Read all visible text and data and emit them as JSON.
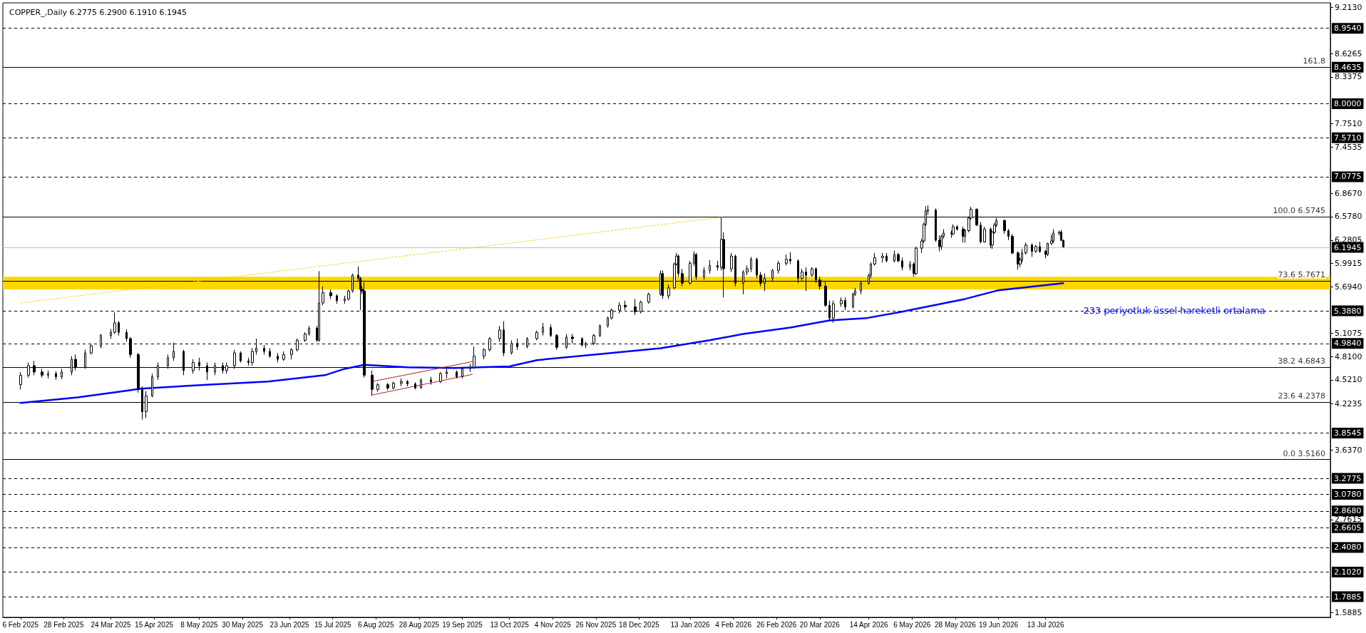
{
  "chart_data": {
    "type": "candlestick",
    "title": "COPPER_,Daily 6.2775 6.2900 6.1910 6.1945",
    "color": "#000000",
    "marker": "none",
    "x": [
      "2025-02-06",
      "2025-02-10",
      "2025-02-13",
      "2025-02-17",
      "2025-02-20",
      "2025-02-24",
      "2025-02-27",
      "2025-03-04",
      "2025-03-06",
      "2025-03-11",
      "2025-03-14",
      "2025-03-19",
      "2025-03-24",
      "2025-03-26",
      "2025-03-28",
      "2025-04-01",
      "2025-04-03",
      "2025-04-07",
      "2025-04-09",
      "2025-04-11",
      "2025-04-14",
      "2025-04-17",
      "2025-04-22",
      "2025-04-25",
      "2025-04-30",
      "2025-05-05",
      "2025-05-08",
      "2025-05-12",
      "2025-05-16",
      "2025-05-20",
      "2025-05-22",
      "2025-05-26",
      "2025-05-29",
      "2025-06-02",
      "2025-06-04",
      "2025-06-06",
      "2025-06-10",
      "2025-06-13",
      "2025-06-17",
      "2025-06-20",
      "2025-06-24",
      "2025-06-27",
      "2025-07-01",
      "2025-07-03",
      "2025-07-07",
      "2025-07-08",
      "2025-07-10",
      "2025-07-14",
      "2025-07-17",
      "2025-07-21",
      "2025-07-23",
      "2025-07-25",
      "2025-07-28",
      "2025-07-29",
      "2025-07-30",
      "2025-07-31",
      "2025-08-04",
      "2025-08-07",
      "2025-08-12",
      "2025-08-15",
      "2025-08-19",
      "2025-08-22",
      "2025-08-26",
      "2025-08-29",
      "2025-09-03",
      "2025-09-08",
      "2025-09-11",
      "2025-09-16",
      "2025-09-19",
      "2025-09-23",
      "2025-09-25",
      "2025-09-30",
      "2025-10-03",
      "2025-10-08",
      "2025-10-10",
      "2025-10-14",
      "2025-10-17",
      "2025-10-22",
      "2025-10-27",
      "2025-10-30",
      "2025-11-03",
      "2025-11-06",
      "2025-11-11",
      "2025-11-14",
      "2025-11-19",
      "2025-11-21",
      "2025-11-25",
      "2025-11-28",
      "2025-12-02",
      "2025-12-04",
      "2025-12-08",
      "2025-12-11",
      "2025-12-16",
      "2025-12-19",
      "2025-12-23",
      "2025-12-29",
      "2025-12-30",
      "2026-01-02",
      "2026-01-05",
      "2026-01-06",
      "2026-01-07",
      "2026-01-09",
      "2026-01-13",
      "2026-01-15",
      "2026-01-16",
      "2026-01-20",
      "2026-01-23",
      "2026-01-27",
      "2026-01-29",
      "2026-01-30",
      "2026-02-03",
      "2026-02-05",
      "2026-02-09",
      "2026-02-11",
      "2026-02-13",
      "2026-02-16",
      "2026-02-18",
      "2026-02-20",
      "2026-02-24",
      "2026-02-27",
      "2026-03-03",
      "2026-03-05",
      "2026-03-09",
      "2026-03-11",
      "2026-03-13",
      "2026-03-16",
      "2026-03-18",
      "2026-03-20",
      "2026-03-23",
      "2026-03-25",
      "2026-03-27",
      "2026-03-31",
      "2026-04-02",
      "2026-04-06",
      "2026-04-07",
      "2026-04-10",
      "2026-04-14",
      "2026-04-15",
      "2026-04-17",
      "2026-04-21",
      "2026-04-23",
      "2026-04-27",
      "2026-04-29",
      "2026-05-01",
      "2026-05-05",
      "2026-05-07",
      "2026-05-08",
      "2026-05-11",
      "2026-05-12",
      "2026-05-13",
      "2026-05-14",
      "2026-05-18",
      "2026-05-20",
      "2026-05-21",
      "2026-05-22",
      "2026-05-26",
      "2026-05-27",
      "2026-05-29",
      "2026-06-01",
      "2026-06-02",
      "2026-06-04",
      "2026-06-05",
      "2026-06-08",
      "2026-06-10",
      "2026-06-12",
      "2026-06-15",
      "2026-06-16",
      "2026-06-17",
      "2026-06-18",
      "2026-06-22",
      "2026-06-24",
      "2026-06-26",
      "2026-06-29",
      "2026-06-30",
      "2026-07-01",
      "2026-07-03",
      "2026-07-06",
      "2026-07-08",
      "2026-07-10",
      "2026-07-13",
      "2026-07-14",
      "2026-07-16",
      "2026-07-17",
      "2026-07-20",
      "2026-07-21",
      "2026-07-22"
    ],
    "ohlc": [
      [
        4.46,
        4.62,
        4.4,
        4.58
      ],
      [
        4.58,
        4.74,
        4.55,
        4.7
      ],
      [
        4.7,
        4.76,
        4.58,
        4.62
      ],
      [
        4.62,
        4.66,
        4.55,
        4.58
      ],
      [
        4.58,
        4.64,
        4.54,
        4.6
      ],
      [
        4.6,
        4.63,
        4.52,
        4.56
      ],
      [
        4.56,
        4.66,
        4.53,
        4.62
      ],
      [
        4.62,
        4.82,
        4.58,
        4.78
      ],
      [
        4.78,
        4.84,
        4.64,
        4.68
      ],
      [
        4.68,
        4.9,
        4.66,
        4.86
      ],
      [
        4.86,
        4.97,
        4.84,
        4.95
      ],
      [
        4.95,
        5.1,
        4.92,
        5.08
      ],
      [
        5.08,
        5.16,
        5.04,
        5.12
      ],
      [
        5.12,
        5.37,
        5.1,
        5.24
      ],
      [
        5.24,
        5.26,
        5.08,
        5.12
      ],
      [
        5.12,
        5.16,
        5.0,
        5.04
      ],
      [
        5.04,
        5.06,
        4.8,
        4.84
      ],
      [
        4.84,
        4.86,
        4.36,
        4.4
      ],
      [
        4.4,
        4.44,
        4.02,
        4.12
      ],
      [
        4.12,
        4.38,
        4.04,
        4.32
      ],
      [
        4.32,
        4.6,
        4.3,
        4.56
      ],
      [
        4.56,
        4.74,
        4.52,
        4.7
      ],
      [
        4.7,
        4.84,
        4.66,
        4.8
      ],
      [
        4.8,
        4.99,
        4.76,
        4.88
      ],
      [
        4.88,
        4.9,
        4.58,
        4.64
      ],
      [
        4.64,
        4.78,
        4.6,
        4.74
      ],
      [
        4.74,
        4.8,
        4.64,
        4.7
      ],
      [
        4.7,
        4.74,
        4.52,
        4.62
      ],
      [
        4.62,
        4.74,
        4.58,
        4.7
      ],
      [
        4.7,
        4.74,
        4.6,
        4.64
      ],
      [
        4.64,
        4.74,
        4.6,
        4.7
      ],
      [
        4.7,
        4.9,
        4.66,
        4.86
      ],
      [
        4.86,
        4.88,
        4.74,
        4.76
      ],
      [
        4.76,
        4.8,
        4.7,
        4.74
      ],
      [
        4.74,
        4.92,
        4.7,
        4.88
      ],
      [
        4.88,
        5.04,
        4.84,
        4.92
      ],
      [
        4.92,
        4.96,
        4.84,
        4.88
      ],
      [
        4.88,
        4.92,
        4.8,
        4.82
      ],
      [
        4.82,
        4.86,
        4.74,
        4.78
      ],
      [
        4.78,
        4.88,
        4.76,
        4.84
      ],
      [
        4.84,
        4.92,
        4.78,
        4.9
      ],
      [
        4.9,
        5.04,
        4.88,
        5.02
      ],
      [
        5.02,
        5.12,
        5.0,
        5.1
      ],
      [
        5.1,
        5.2,
        5.08,
        5.17
      ],
      [
        5.17,
        5.2,
        5.0,
        5.02
      ],
      [
        5.02,
        5.89,
        5.0,
        5.49
      ],
      [
        5.49,
        5.7,
        5.46,
        5.62
      ],
      [
        5.62,
        5.66,
        5.54,
        5.58
      ],
      [
        5.58,
        5.6,
        5.48,
        5.52
      ],
      [
        5.52,
        5.58,
        5.48,
        5.54
      ],
      [
        5.54,
        5.66,
        5.52,
        5.64
      ],
      [
        5.64,
        5.86,
        5.62,
        5.84
      ],
      [
        5.84,
        5.95,
        5.76,
        5.8
      ],
      [
        5.8,
        5.82,
        5.4,
        5.66
      ],
      [
        5.66,
        5.7,
        5.6,
        5.64
      ],
      [
        5.64,
        5.75,
        4.55,
        4.58
      ],
      [
        4.58,
        4.64,
        4.32,
        4.4
      ],
      [
        4.4,
        4.48,
        4.37,
        4.46
      ],
      [
        4.46,
        4.48,
        4.39,
        4.42
      ],
      [
        4.42,
        4.5,
        4.4,
        4.48
      ],
      [
        4.48,
        4.54,
        4.44,
        4.5
      ],
      [
        4.5,
        4.52,
        4.44,
        4.47
      ],
      [
        4.47,
        4.49,
        4.4,
        4.42
      ],
      [
        4.42,
        4.54,
        4.41,
        4.52
      ],
      [
        4.52,
        4.56,
        4.46,
        4.5
      ],
      [
        4.5,
        4.62,
        4.48,
        4.6
      ],
      [
        4.6,
        4.66,
        4.54,
        4.62
      ],
      [
        4.62,
        4.64,
        4.54,
        4.56
      ],
      [
        4.56,
        4.68,
        4.54,
        4.66
      ],
      [
        4.66,
        4.72,
        4.62,
        4.68
      ],
      [
        4.68,
        4.94,
        4.66,
        4.82
      ],
      [
        4.82,
        4.92,
        4.78,
        4.9
      ],
      [
        4.9,
        5.06,
        4.88,
        5.04
      ],
      [
        5.04,
        5.2,
        5.0,
        5.15
      ],
      [
        5.15,
        5.26,
        4.82,
        4.86
      ],
      [
        4.86,
        5.02,
        4.84,
        4.98
      ],
      [
        4.98,
        5.04,
        4.9,
        4.94
      ],
      [
        4.94,
        5.06,
        4.92,
        5.04
      ],
      [
        5.04,
        5.14,
        5.02,
        5.12
      ],
      [
        5.12,
        5.24,
        5.08,
        5.18
      ],
      [
        5.18,
        5.22,
        5.06,
        5.08
      ],
      [
        5.08,
        5.1,
        4.9,
        4.93
      ],
      [
        4.93,
        5.1,
        4.91,
        5.06
      ],
      [
        5.06,
        5.1,
        4.98,
        5.04
      ],
      [
        5.04,
        5.06,
        4.94,
        4.96
      ],
      [
        4.96,
        5.0,
        4.92,
        4.98
      ],
      [
        4.98,
        5.1,
        4.96,
        5.08
      ],
      [
        5.08,
        5.22,
        5.06,
        5.2
      ],
      [
        5.2,
        5.32,
        5.18,
        5.3
      ],
      [
        5.3,
        5.42,
        5.28,
        5.4
      ],
      [
        5.4,
        5.5,
        5.36,
        5.46
      ],
      [
        5.46,
        5.52,
        5.4,
        5.44
      ],
      [
        5.44,
        5.54,
        5.34,
        5.38
      ],
      [
        5.38,
        5.52,
        5.36,
        5.5
      ],
      [
        5.5,
        5.62,
        5.48,
        5.6
      ],
      [
        5.6,
        5.9,
        5.58,
        5.86
      ],
      [
        5.86,
        5.9,
        5.54,
        5.58
      ],
      [
        5.58,
        5.72,
        5.54,
        5.68
      ],
      [
        5.68,
        6.0,
        5.66,
        5.98
      ],
      [
        5.98,
        6.12,
        5.96,
        6.08
      ],
      [
        6.08,
        6.1,
        5.82,
        5.86
      ],
      [
        5.86,
        5.92,
        5.7,
        5.74
      ],
      [
        5.74,
        6.02,
        5.72,
        5.99
      ],
      [
        5.99,
        6.14,
        5.96,
        6.1
      ],
      [
        6.1,
        6.12,
        5.78,
        5.82
      ],
      [
        5.82,
        5.94,
        5.78,
        5.9
      ],
      [
        5.9,
        6.03,
        5.86,
        5.96
      ],
      [
        5.96,
        6.02,
        5.9,
        5.94
      ],
      [
        5.94,
        6.57,
        5.9,
        6.29
      ],
      [
        6.29,
        6.38,
        5.56,
        5.92
      ],
      [
        5.92,
        6.12,
        5.88,
        6.08
      ],
      [
        6.08,
        6.1,
        5.7,
        5.74
      ],
      [
        5.74,
        5.9,
        5.6,
        5.88
      ],
      [
        5.88,
        5.96,
        5.84,
        5.92
      ],
      [
        5.92,
        6.07,
        5.88,
        6.04
      ],
      [
        6.04,
        6.06,
        5.8,
        5.84
      ],
      [
        5.84,
        5.88,
        5.7,
        5.74
      ],
      [
        5.74,
        5.86,
        5.64,
        5.8
      ],
      [
        5.8,
        5.92,
        5.76,
        5.9
      ],
      [
        5.9,
        6.02,
        5.86,
        5.99
      ],
      [
        5.99,
        6.1,
        5.96,
        6.04
      ],
      [
        6.04,
        6.13,
        5.98,
        6.02
      ],
      [
        6.02,
        6.04,
        5.74,
        5.8
      ],
      [
        5.8,
        5.92,
        5.76,
        5.88
      ],
      [
        5.88,
        5.94,
        5.64,
        5.84
      ],
      [
        5.84,
        5.94,
        5.82,
        5.92
      ],
      [
        5.92,
        5.94,
        5.74,
        5.78
      ],
      [
        5.78,
        5.82,
        5.66,
        5.7
      ],
      [
        5.7,
        5.76,
        5.44,
        5.46
      ],
      [
        5.46,
        5.52,
        5.26,
        5.3
      ],
      [
        5.3,
        5.52,
        5.24,
        5.48
      ],
      [
        5.48,
        5.56,
        5.44,
        5.52
      ],
      [
        5.52,
        5.56,
        5.4,
        5.44
      ],
      [
        5.44,
        5.62,
        5.42,
        5.6
      ],
      [
        5.6,
        5.68,
        5.58,
        5.64
      ],
      [
        5.64,
        5.76,
        5.6,
        5.74
      ],
      [
        5.74,
        5.86,
        5.72,
        5.84
      ],
      [
        5.84,
        6.0,
        5.8,
        5.98
      ],
      [
        5.98,
        6.12,
        5.96,
        6.06
      ],
      [
        6.06,
        6.12,
        6.0,
        6.08
      ],
      [
        6.08,
        6.12,
        6.0,
        6.02
      ],
      [
        6.02,
        6.15,
        6.0,
        6.1
      ],
      [
        6.1,
        6.12,
        6.0,
        6.02
      ],
      [
        6.02,
        6.06,
        5.9,
        5.94
      ],
      [
        5.94,
        6.02,
        5.9,
        5.98
      ],
      [
        5.98,
        6.0,
        5.82,
        5.86
      ],
      [
        5.86,
        6.2,
        5.84,
        6.18
      ],
      [
        6.18,
        6.3,
        6.12,
        6.27
      ],
      [
        6.27,
        6.5,
        6.25,
        6.48
      ],
      [
        6.48,
        6.71,
        6.46,
        6.65
      ],
      [
        6.65,
        6.72,
        6.6,
        6.66
      ],
      [
        6.66,
        6.68,
        6.26,
        6.28
      ],
      [
        6.28,
        6.34,
        6.14,
        6.2
      ],
      [
        6.2,
        6.35,
        6.16,
        6.33
      ],
      [
        6.33,
        6.42,
        6.3,
        6.37
      ],
      [
        6.37,
        6.4,
        6.31,
        6.36
      ],
      [
        6.36,
        6.48,
        6.34,
        6.45
      ],
      [
        6.45,
        6.47,
        6.4,
        6.42
      ],
      [
        6.42,
        6.45,
        6.25,
        6.33
      ],
      [
        6.33,
        6.42,
        6.25,
        6.4
      ],
      [
        6.4,
        6.58,
        6.38,
        6.56
      ],
      [
        6.56,
        6.7,
        6.54,
        6.67
      ],
      [
        6.67,
        6.68,
        6.46,
        6.47
      ],
      [
        6.47,
        6.51,
        6.24,
        6.26
      ],
      [
        6.26,
        6.45,
        6.25,
        6.42
      ],
      [
        6.42,
        6.44,
        6.18,
        6.22
      ],
      [
        6.22,
        6.4,
        6.17,
        6.38
      ],
      [
        6.38,
        6.5,
        6.36,
        6.47
      ],
      [
        6.47,
        6.56,
        6.45,
        6.53
      ],
      [
        6.53,
        6.54,
        6.36,
        6.4
      ],
      [
        6.4,
        6.42,
        6.28,
        6.33
      ],
      [
        6.33,
        6.36,
        6.1,
        6.12
      ],
      [
        6.12,
        6.14,
        5.91,
        5.98
      ],
      [
        5.98,
        6.06,
        5.94,
        6.03
      ],
      [
        6.03,
        6.17,
        6.0,
        6.12
      ],
      [
        6.12,
        6.25,
        6.1,
        6.22
      ],
      [
        6.22,
        6.24,
        6.07,
        6.14
      ],
      [
        6.14,
        6.22,
        6.12,
        6.2
      ],
      [
        6.2,
        6.26,
        6.12,
        6.14
      ],
      [
        6.14,
        6.16,
        6.05,
        6.1
      ],
      [
        6.1,
        6.25,
        6.08,
        6.24
      ],
      [
        6.24,
        6.35,
        6.22,
        6.27
      ],
      [
        6.27,
        6.42,
        6.25,
        6.37
      ],
      [
        6.37,
        6.4,
        6.34,
        6.38
      ],
      [
        6.38,
        6.41,
        6.27,
        6.2775
      ],
      [
        6.2775,
        6.29,
        6.191,
        6.1945
      ]
    ],
    "series": [
      {
        "type": "line",
        "name": "233 periyotluk üssel hareketli ortalama",
        "color": "#0000ff",
        "line_style": "solid",
        "x": [
          "2025-02-06",
          "2025-03-07",
          "2025-03-31",
          "2025-04-08",
          "2025-05-12",
          "2025-06-12",
          "2025-07-11",
          "2025-07-21",
          "2025-07-31",
          "2025-08-22",
          "2025-09-15",
          "2025-10-13",
          "2025-10-27",
          "2025-11-26",
          "2025-12-29",
          "2026-01-23",
          "2026-02-09",
          "2026-03-05",
          "2026-03-25",
          "2026-04-13",
          "2026-04-29",
          "2026-05-13",
          "2026-06-02",
          "2026-06-19",
          "2026-07-08",
          "2026-07-22"
        ],
        "values": [
          4.23,
          4.3,
          4.38,
          4.41,
          4.46,
          4.5,
          4.58,
          4.66,
          4.71,
          4.68,
          4.67,
          4.69,
          4.77,
          4.84,
          4.92,
          5.02,
          5.1,
          5.18,
          5.27,
          5.3,
          5.37,
          5.44,
          5.54,
          5.65,
          5.7,
          5.74
        ]
      },
      {
        "type": "line",
        "color": "#ffcc00",
        "line_style": "dotted",
        "x": [
          "2025-02-06",
          "2026-01-29"
        ],
        "values": [
          5.49,
          6.57
        ]
      },
      {
        "type": "line",
        "color": "#b22222",
        "line_style": "solid",
        "x": [
          "2025-08-04",
          "2025-09-24"
        ],
        "values": [
          4.5,
          4.75
        ]
      },
      {
        "type": "line",
        "color": "#b22222",
        "line_style": "solid",
        "x": [
          "2025-08-04",
          "2025-09-24"
        ],
        "values": [
          4.33,
          4.59
        ]
      }
    ],
    "xlim": [
      "2025-01-28",
      "2026-12-05"
    ],
    "xticks": [
      {
        "value": "2025-02-06",
        "label": "6 Feb 2025"
      },
      {
        "value": "2025-02-28",
        "label": "28 Feb 2025"
      },
      {
        "value": "2025-03-24",
        "label": "24 Mar 2025"
      },
      {
        "value": "2025-04-15",
        "label": "15 Apr 2025"
      },
      {
        "value": "2025-05-08",
        "label": "8 May 2025"
      },
      {
        "value": "2025-05-30",
        "label": "30 May 2025"
      },
      {
        "value": "2025-06-23",
        "label": "23 Jun 2025"
      },
      {
        "value": "2025-07-15",
        "label": "15 Jul 2025"
      },
      {
        "value": "2025-08-06",
        "label": "6 Aug 2025"
      },
      {
        "value": "2025-08-28",
        "label": "28 Aug 2025"
      },
      {
        "value": "2025-09-19",
        "label": "19 Sep 2025"
      },
      {
        "value": "2025-10-13",
        "label": "13 Oct 2025"
      },
      {
        "value": "2025-11-04",
        "label": "4 Nov 2025"
      },
      {
        "value": "2025-11-26",
        "label": "26 Nov 2025"
      },
      {
        "value": "2025-12-18",
        "label": "18 Dec 2025"
      },
      {
        "value": "2026-01-13",
        "label": "13 Jan 2026"
      },
      {
        "value": "2026-02-04",
        "label": "4 Feb 2026"
      },
      {
        "value": "2026-02-26",
        "label": "26 Feb 2026"
      },
      {
        "value": "2026-03-20",
        "label": "20 Mar 2026"
      },
      {
        "value": "2026-04-14",
        "label": "14 Apr 2026"
      },
      {
        "value": "2026-05-06",
        "label": "6 May 2026"
      },
      {
        "value": "2026-05-28",
        "label": "28 May 2026"
      },
      {
        "value": "2026-06-19",
        "label": "19 Jun 2026"
      },
      {
        "value": "2026-07-13",
        "label": "13 Jul 2026"
      }
    ],
    "ylim": [
      1.53,
      9.27
    ],
    "yticks": [
      {
        "value": 9.213,
        "label": "9.2130"
      },
      {
        "value": 8.6265,
        "label": "8.6265"
      },
      {
        "value": 8.3375,
        "label": "8.3375"
      },
      {
        "value": 7.751,
        "label": "7.7510"
      },
      {
        "value": 7.4535,
        "label": "7.4535"
      },
      {
        "value": 6.867,
        "label": "6.8670"
      },
      {
        "value": 6.578,
        "label": "6.5780"
      },
      {
        "value": 6.2805,
        "label": "6.2805"
      },
      {
        "value": 5.9915,
        "label": "5.9915"
      },
      {
        "value": 5.694,
        "label": "5.6940"
      },
      {
        "value": 5.1075,
        "label": "5.1075"
      },
      {
        "value": 4.81,
        "label": "4.8100"
      },
      {
        "value": 4.521,
        "label": "4.5210"
      },
      {
        "value": 4.2235,
        "label": "4.2235"
      },
      {
        "value": 3.637,
        "label": "3.6370"
      },
      {
        "value": 2.7615,
        "label": "2.7615"
      },
      {
        "value": 1.5885,
        "label": "1.5885"
      }
    ],
    "ref_lines": [
      {
        "axis": "y",
        "value": 8.954,
        "label": "8.9540",
        "line_style": "dashed",
        "color": "#000000"
      },
      {
        "axis": "y",
        "value": 8.4635,
        "label": "8.4635",
        "line_style": "solid",
        "color": "#000000"
      },
      {
        "axis": "y",
        "value": 8.0,
        "label": "8.0000",
        "line_style": "dashed",
        "color": "#000000"
      },
      {
        "axis": "y",
        "value": 7.571,
        "label": "7.5710",
        "line_style": "dashed",
        "color": "#000000"
      },
      {
        "axis": "y",
        "value": 7.0775,
        "label": "7.0775",
        "line_style": "dashed",
        "color": "#000000"
      },
      {
        "axis": "y",
        "value": 6.5745,
        "line_style": "solid",
        "color": "#000000"
      },
      {
        "axis": "y",
        "value": 6.1945,
        "label": "6.1945",
        "line_style": "solid",
        "color": "#c0c0c0"
      },
      {
        "axis": "y",
        "value": 5.7671,
        "line_style": "solid",
        "color": "#000000"
      },
      {
        "axis": "y",
        "value": 5.388,
        "label": "5.3880",
        "line_style": "dashed",
        "color": "#000000"
      },
      {
        "axis": "y",
        "value": 4.984,
        "label": "4.9840",
        "line_style": "dashed",
        "color": "#000000"
      },
      {
        "axis": "y",
        "value": 4.6843,
        "line_style": "solid",
        "color": "#000000"
      },
      {
        "axis": "y",
        "value": 4.2378,
        "line_style": "solid",
        "color": "#000000"
      },
      {
        "axis": "y",
        "value": 3.8545,
        "label": "3.8545",
        "line_style": "dashed",
        "color": "#000000"
      },
      {
        "axis": "y",
        "value": 3.516,
        "line_style": "solid",
        "color": "#000000"
      },
      {
        "axis": "y",
        "value": 3.2775,
        "label": "3.2775",
        "line_style": "dashed",
        "color": "#000000"
      },
      {
        "axis": "y",
        "value": 3.078,
        "label": "3.0780",
        "line_style": "dashed",
        "color": "#000000"
      },
      {
        "axis": "y",
        "value": 2.868,
        "label": "2.8680",
        "line_style": "dashed",
        "color": "#000000"
      },
      {
        "axis": "y",
        "value": 2.6605,
        "label": "2.6605",
        "line_style": "dashed",
        "color": "#000000"
      },
      {
        "axis": "y",
        "value": 2.408,
        "label": "2.4080",
        "line_style": "dashed",
        "color": "#000000"
      },
      {
        "axis": "y",
        "value": 2.102,
        "label": "2.1020",
        "line_style": "dashed",
        "color": "#000000"
      },
      {
        "axis": "y",
        "value": 1.7885,
        "label": "1.7885",
        "line_style": "dashed",
        "color": "#000000"
      }
    ],
    "bands": [
      {
        "axis": "y",
        "from": 5.66,
        "to": 5.82,
        "color": "#ffd700"
      }
    ],
    "annotations": [
      {
        "text": "161.8",
        "x": "2026-12-05",
        "y": 8.4635
      },
      {
        "text": "100.0 6.5745",
        "x": "2026-12-05",
        "y": 6.5745
      },
      {
        "text": "73.6 5.7671",
        "x": "2026-12-05",
        "y": 5.7671
      },
      {
        "text": "38.2 4.6843",
        "x": "2026-12-05",
        "y": 4.6843
      },
      {
        "text": "23.6 4.2378",
        "x": "2026-12-05",
        "y": 4.2378
      },
      {
        "text": "0.0 3.5160",
        "x": "2026-12-05",
        "y": 3.516
      }
    ]
  }
}
